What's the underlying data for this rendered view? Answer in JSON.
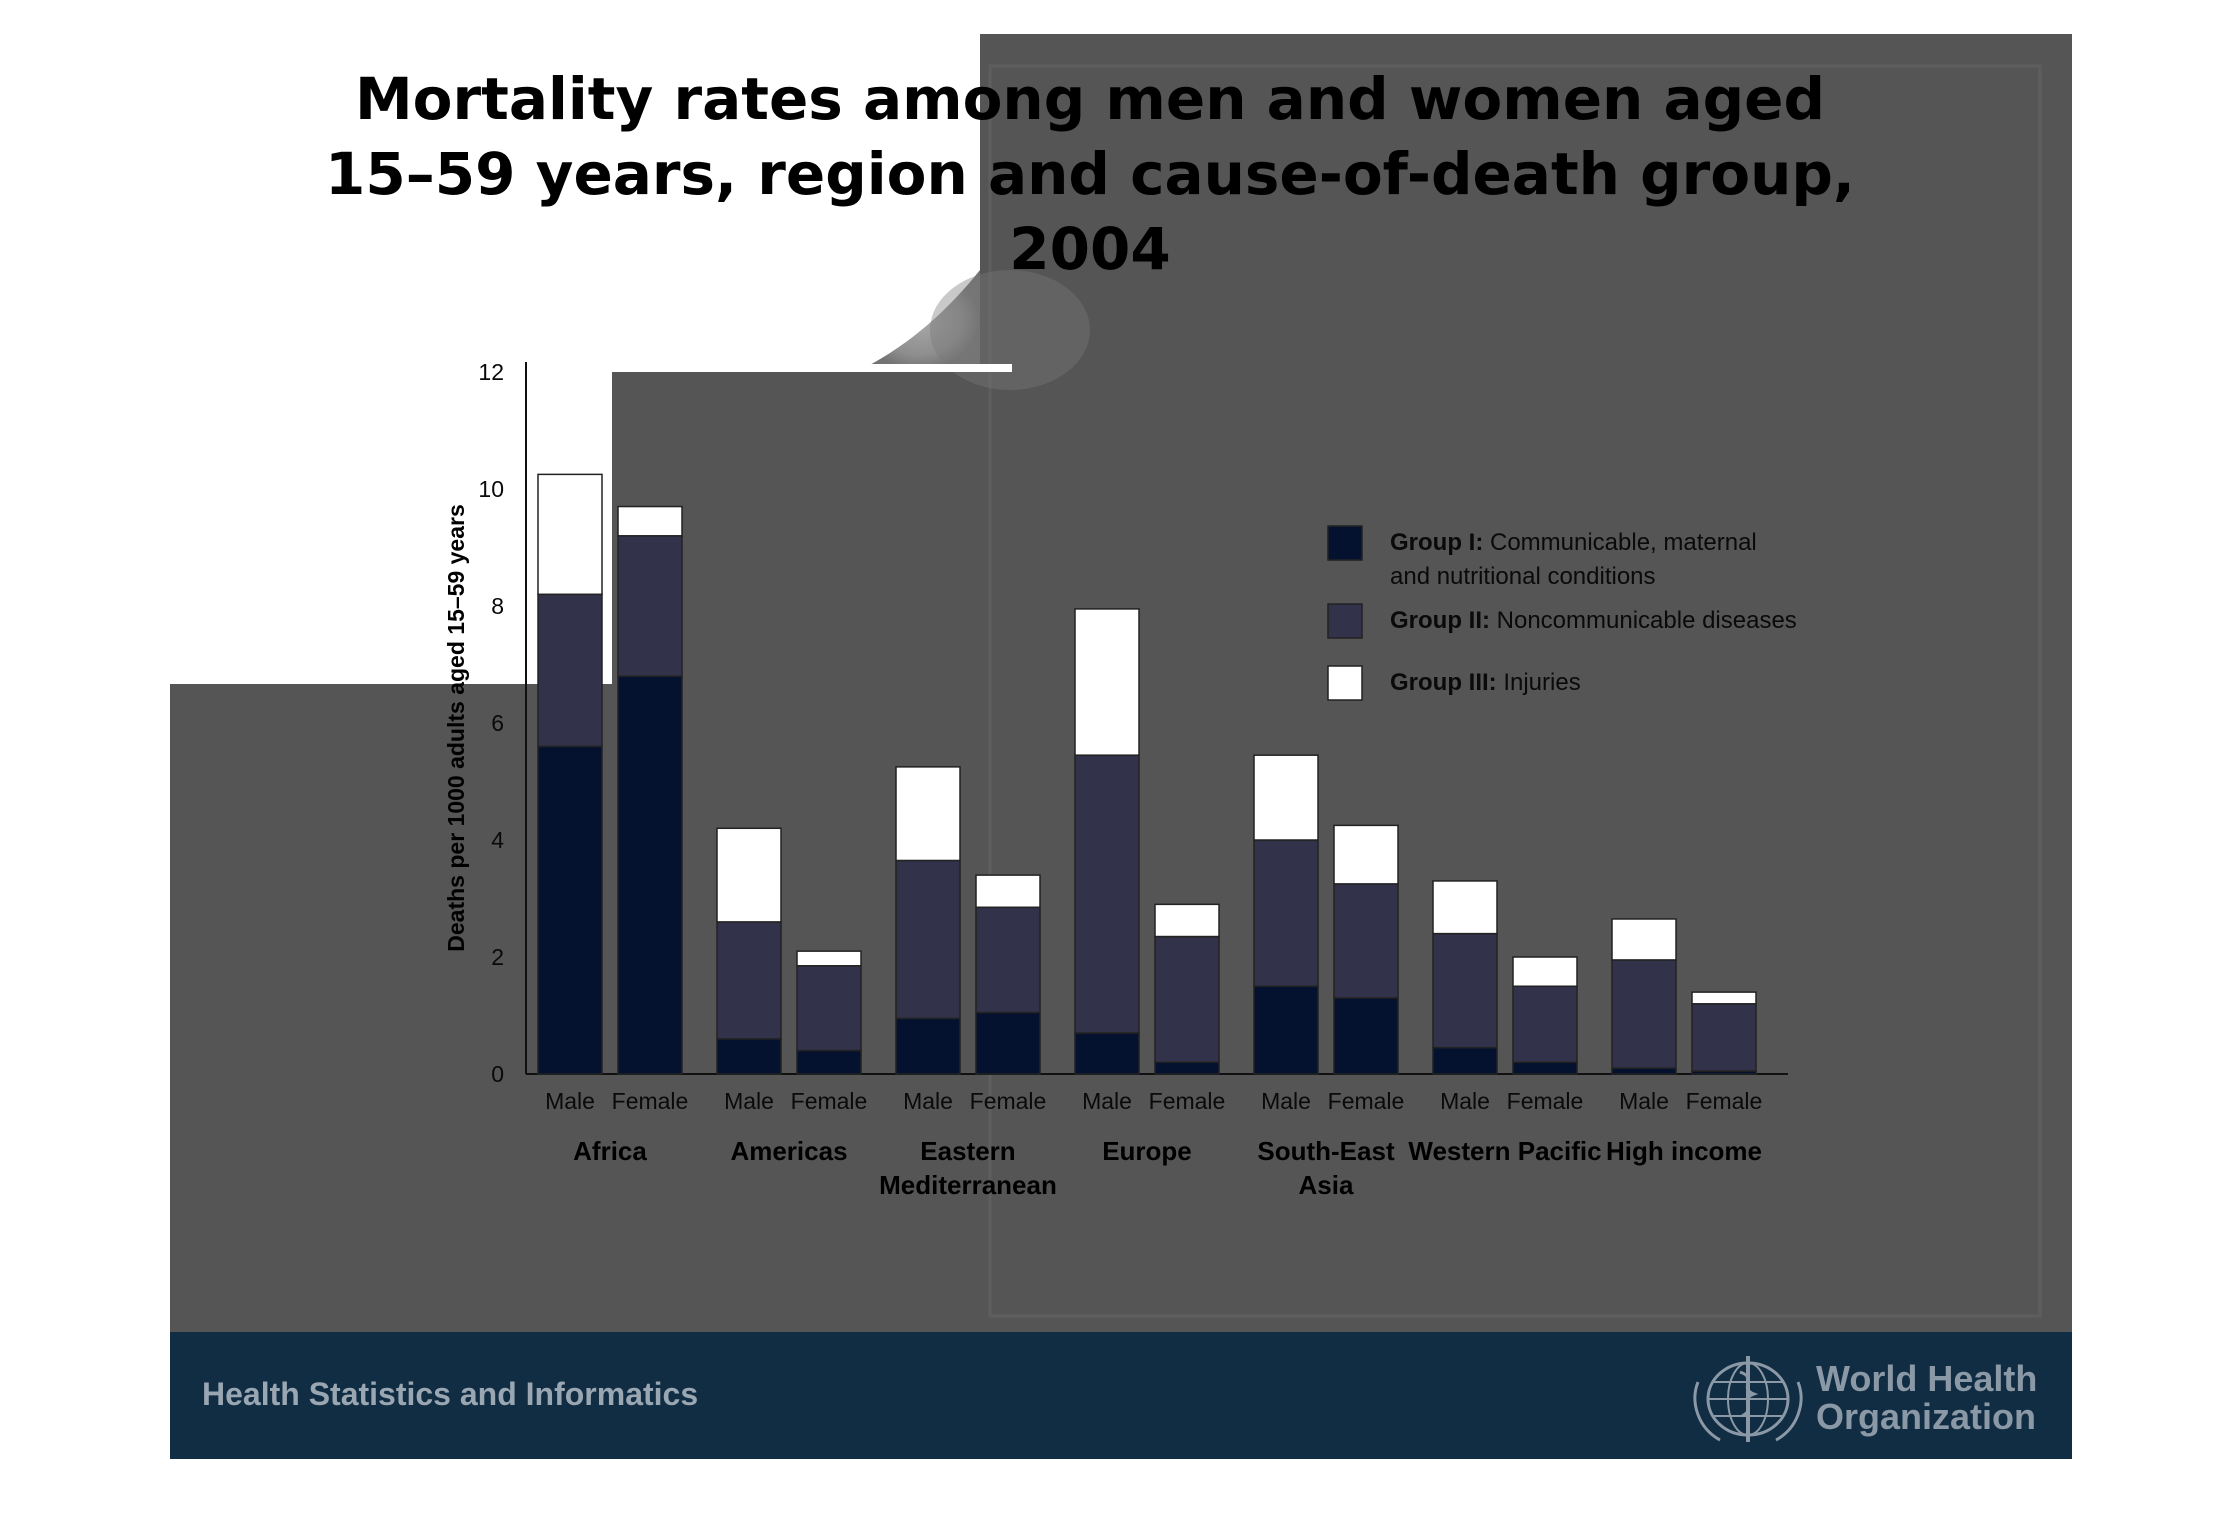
{
  "slide": {
    "title_lines": [
      "Mortality rates among men and women aged",
      "15–59 years, region and cause-of-death group,",
      "2004"
    ],
    "footer_text": "Health Statistics and Informatics",
    "logo_text_lines": [
      "World Health",
      "Organization"
    ]
  },
  "chart_data": {
    "type": "bar",
    "stacked": true,
    "title": "Mortality rates among men and women aged 15–59 years, region and cause-of-death group, 2004",
    "ylabel": "Deaths per 1000 adults aged 15–59 years",
    "xlabel": "",
    "ylim": [
      0,
      12
    ],
    "yticks": [
      "0",
      "2",
      "4",
      "6",
      "8",
      "10",
      "12"
    ],
    "grid": false,
    "legend_position": "right",
    "regions": [
      {
        "label_lines": [
          "Africa"
        ]
      },
      {
        "label_lines": [
          "Americas"
        ]
      },
      {
        "label_lines": [
          "Eastern",
          "Mediterranean"
        ]
      },
      {
        "label_lines": [
          "Europe"
        ]
      },
      {
        "label_lines": [
          "South-East",
          "Asia"
        ]
      },
      {
        "label_lines": [
          "Western Pacific"
        ]
      },
      {
        "label_lines": [
          "High income"
        ]
      }
    ],
    "sex_labels": [
      "Male",
      "Female"
    ],
    "categories": [
      "Africa Male",
      "Africa Female",
      "Americas Male",
      "Americas Female",
      "Eastern Mediterranean Male",
      "Eastern Mediterranean Female",
      "Europe Male",
      "Europe Female",
      "South-East Asia Male",
      "South-East Asia Female",
      "Western Pacific Male",
      "Western Pacific Female",
      "High income Male",
      "High income Female"
    ],
    "series": [
      {
        "name": "Group I: Communicable, maternal and nutritional conditions",
        "legend_bold": "Group I:",
        "legend_rest": [
          "Communicable, maternal",
          "and nutritional conditions"
        ],
        "color": "#041230",
        "values": [
          5.6,
          6.8,
          0.6,
          0.4,
          0.95,
          1.05,
          0.7,
          0.2,
          1.5,
          1.3,
          0.45,
          0.2,
          0.1,
          0.05
        ]
      },
      {
        "name": "Group II: Noncommunicable diseases",
        "legend_bold": "Group II:",
        "legend_rest": [
          "Noncommunicable diseases"
        ],
        "color": "#32324a",
        "values": [
          2.6,
          2.4,
          2.0,
          1.45,
          2.7,
          1.8,
          4.75,
          2.15,
          2.5,
          1.95,
          1.95,
          1.3,
          1.85,
          1.15
        ]
      },
      {
        "name": "Group III: Injuries",
        "legend_bold": "Group III:",
        "legend_rest": [
          "Injuries"
        ],
        "color": "#ffffff",
        "values": [
          2.05,
          0.5,
          1.6,
          0.25,
          1.6,
          0.55,
          2.5,
          0.55,
          1.45,
          1.0,
          0.9,
          0.5,
          0.7,
          0.2
        ]
      }
    ],
    "overlay_colors": {
      "panel_gray": "#555555",
      "highlight_lavender": "#d9d6f7",
      "footer_navy": "#102d43"
    }
  }
}
